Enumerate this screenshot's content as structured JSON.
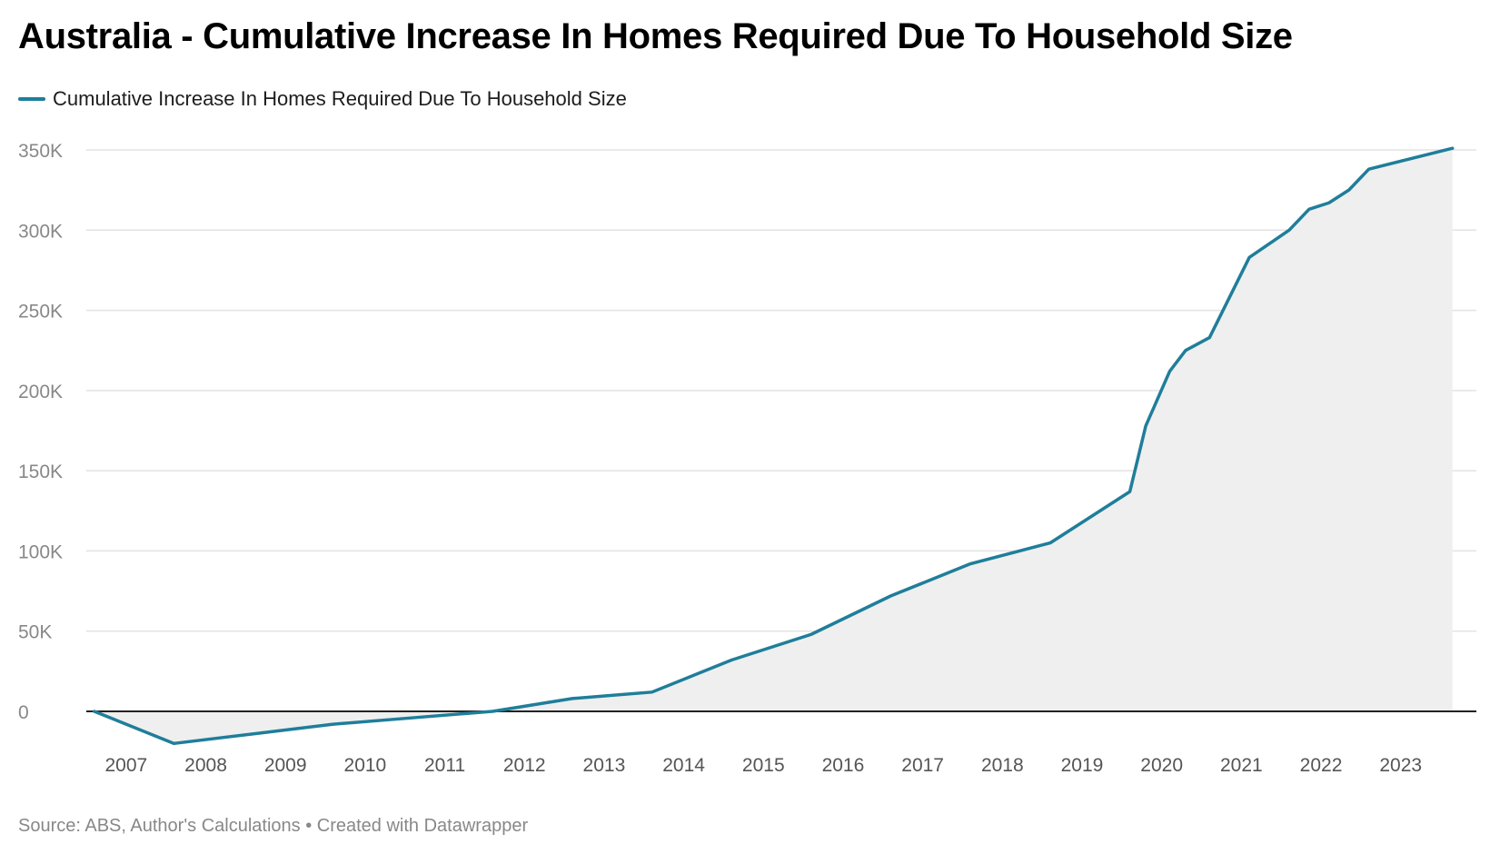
{
  "chart_data": {
    "type": "area",
    "title": "Australia - Cumulative Increase In Homes Required Due To Household Size",
    "xlabel": "",
    "ylabel": "",
    "ylim": [
      -20000,
      350000
    ],
    "y_ticks": [
      {
        "value": 0,
        "label": "0"
      },
      {
        "value": 50000,
        "label": "50K"
      },
      {
        "value": 100000,
        "label": "100K"
      },
      {
        "value": 150000,
        "label": "150K"
      },
      {
        "value": 200000,
        "label": "200K"
      },
      {
        "value": 250000,
        "label": "250K"
      },
      {
        "value": 300000,
        "label": "300K"
      },
      {
        "value": 350000,
        "label": "350K"
      }
    ],
    "x_ticks": [
      "2007",
      "2008",
      "2009",
      "2010",
      "2011",
      "2012",
      "2013",
      "2014",
      "2015",
      "2016",
      "2017",
      "2018",
      "2019",
      "2020",
      "2021",
      "2022",
      "2023"
    ],
    "xlim": [
      2006.5,
      2023.95
    ],
    "grid": true,
    "legend_position": "top-left",
    "series": [
      {
        "name": "Cumulative Increase In Homes Required Due To Household Size",
        "color": "#1f7e9a",
        "x": [
          2006.6,
          2007.6,
          2008.6,
          2009.6,
          2010.6,
          2011.6,
          2012.6,
          2013.6,
          2014.6,
          2015.6,
          2016.6,
          2017.6,
          2018.6,
          2019.6,
          2019.8,
          2020.1,
          2020.3,
          2020.6,
          2021.1,
          2021.6,
          2021.85,
          2022.1,
          2022.35,
          2022.6,
          2023.65
        ],
        "values": [
          0,
          -20000,
          -14000,
          -8000,
          -4000,
          0,
          8000,
          12000,
          32000,
          48000,
          72000,
          92000,
          105000,
          137000,
          178000,
          212000,
          225000,
          233000,
          283000,
          300000,
          313000,
          317000,
          325000,
          338000,
          351000
        ]
      }
    ],
    "area_fill": "#efefef"
  },
  "legend": {
    "label": "Cumulative Increase In Homes Required Due To Household Size",
    "color": "#1f7e9a"
  },
  "footer": {
    "text": "Source: ABS, Author's Calculations • Created with Datawrapper"
  }
}
